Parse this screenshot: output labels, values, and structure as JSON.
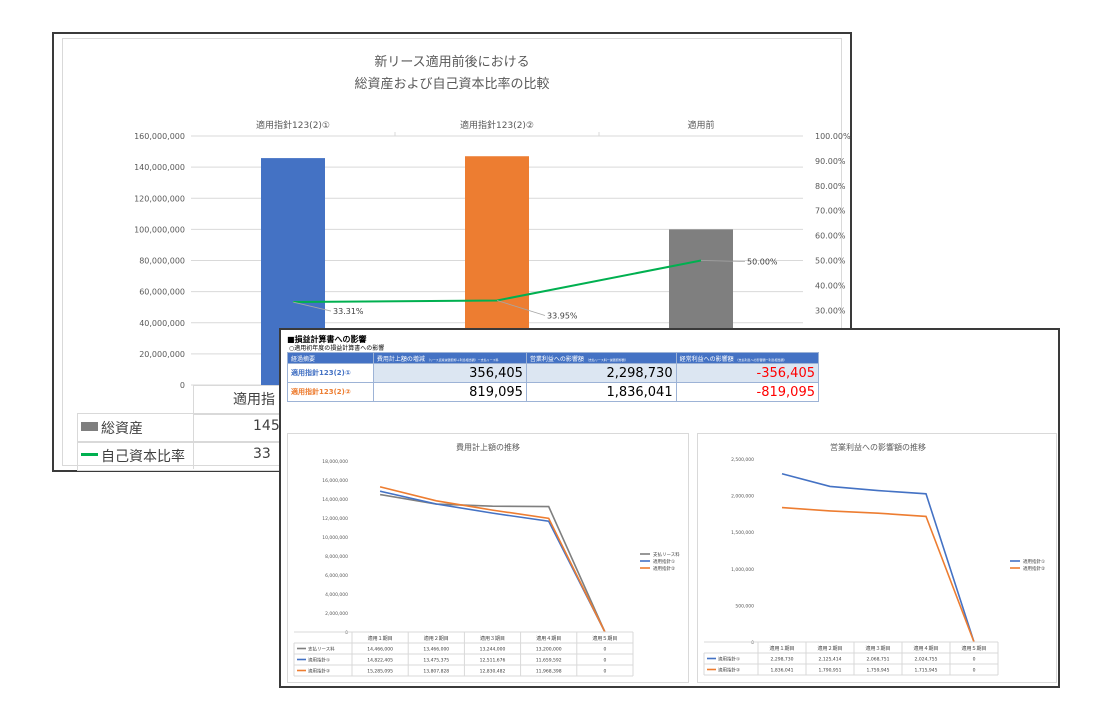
{
  "colors": {
    "blue": "#4472c4",
    "orange": "#ed7d31",
    "gray": "#7f7f7f",
    "green": "#00b050",
    "header_blue": "#4472c4",
    "cell_blue": "#dce6f2",
    "red": "#ff0000"
  },
  "main_chart": {
    "title_line1": "新リース適用前後における",
    "title_line2": "総資産および自己資本比率の比較",
    "y_left_ticks": [
      "160,000,000",
      "140,000,000",
      "120,000,000",
      "100,000,000",
      "80,000,000",
      "60,000,000",
      "40,000,000",
      "20,000,000",
      "0"
    ],
    "y_right_ticks": [
      "100.00%",
      "90.00%",
      "80.00%",
      "70.00%",
      "60.00%",
      "50.00%",
      "40.00%",
      "30.00%"
    ],
    "legend_total_assets": "総資産",
    "legend_equity_ratio": "自己資本比率",
    "table_header_partial": "適用指",
    "table_asset_partial": "145,",
    "table_ratio_partial": "33"
  },
  "impact": {
    "heading": "■損益計算書への影響",
    "subheading": "○適用初年度の損益計算書への影響",
    "col_headers": [
      "経過摘要",
      "費用計上額の増減",
      "営業利益への影響額",
      "経常利益への影響額"
    ],
    "col_header_notes": [
      "",
      "（リース資産減価償却＋利息相当額）ー支払リース料",
      "（支払リース料ー減価償却費）",
      "（支払利息への影響額ー利息相当額）"
    ],
    "rows": [
      {
        "label": "適用指針123(2)①",
        "values": [
          "356,405",
          "2,298,730",
          "-356,405"
        ]
      },
      {
        "label": "適用指針123(2)②",
        "values": [
          "819,095",
          "1,836,041",
          "-819,095"
        ]
      }
    ]
  },
  "chart_data": [
    {
      "type": "bar",
      "title": "新リース適用前後における 総資産および自己資本比率の比較",
      "categories": [
        "適用指針123(2)①",
        "適用指針123(2)②",
        "適用前"
      ],
      "series": [
        {
          "name": "総資産",
          "type": "bar",
          "axis": "left",
          "values": [
            145800000,
            147000000,
            100000000
          ]
        },
        {
          "name": "自己資本比率",
          "type": "line",
          "axis": "right",
          "values": [
            33.31,
            33.95,
            50.0
          ],
          "data_labels": [
            "33.31%",
            "33.95%",
            "50.00%"
          ]
        }
      ],
      "ylim_left": [
        0,
        160000000
      ],
      "ylim_right": [
        0,
        100
      ],
      "grid": true
    },
    {
      "type": "line",
      "title": "費用計上額の推移",
      "categories": [
        "適用１期目",
        "適用２期目",
        "適用３期目",
        "適用４期目",
        "適用５期目"
      ],
      "series": [
        {
          "name": "支払リース料",
          "values": [
            14466000,
            13466000,
            13244000,
            13200000,
            0
          ],
          "labels": [
            "14,466,000",
            "13,466,000",
            "13,244,000",
            "13,200,000",
            "0"
          ]
        },
        {
          "name": "適用指針①",
          "values": [
            14822405,
            13475375,
            12511676,
            11659592,
            0
          ],
          "labels": [
            "14,822,405",
            "13,475,375",
            "12,511,676",
            "11,659,592",
            "0"
          ]
        },
        {
          "name": "適用指針②",
          "values": [
            15285095,
            13807828,
            12830482,
            11968398,
            0
          ],
          "labels": [
            "15,285,095",
            "13,807,828",
            "12,830,482",
            "11,968,398",
            "0"
          ]
        }
      ],
      "y_ticks": [
        "18,000,000",
        "16,000,000",
        "14,000,000",
        "12,000,000",
        "10,000,000",
        "8,000,000",
        "6,000,000",
        "4,000,000",
        "2,000,000",
        "0"
      ],
      "ylim": [
        0,
        18000000
      ],
      "legend": "right"
    },
    {
      "type": "line",
      "title": "営業利益への影響額の推移",
      "categories": [
        "適用１期目",
        "適用２期目",
        "適用３期目",
        "適用４期目",
        "適用５期目"
      ],
      "series": [
        {
          "name": "適用指針①",
          "values": [
            2298730,
            2125414,
            2068751,
            2024755,
            0
          ],
          "labels": [
            "2,298,730",
            "2,125,414",
            "2,068,751",
            "2,024,755",
            "0"
          ]
        },
        {
          "name": "適用指針②",
          "values": [
            1836041,
            1790951,
            1759945,
            1715945,
            0
          ],
          "labels": [
            "1,836,041",
            "1,790,951",
            "1,759,945",
            "1,715,945",
            "0"
          ]
        }
      ],
      "y_ticks": [
        "2,500,000",
        "2,000,000",
        "1,500,000",
        "1,000,000",
        "500,000",
        "0"
      ],
      "ylim": [
        0,
        2500000
      ],
      "legend": "right"
    }
  ]
}
